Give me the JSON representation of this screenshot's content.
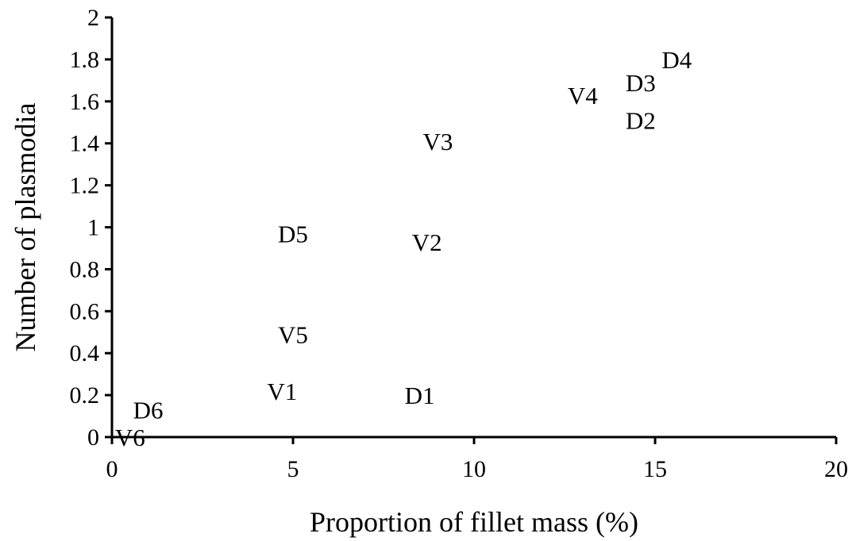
{
  "chart_data": {
    "type": "scatter",
    "title": "",
    "xlabel": "Proportion of fillet mass (%)",
    "ylabel": "Number of plasmodia",
    "xlim": [
      0,
      20
    ],
    "ylim": [
      0,
      2
    ],
    "xticks": [
      0,
      5,
      10,
      15,
      20
    ],
    "yticks": [
      0,
      0.2,
      0.4,
      0.6,
      0.8,
      1,
      1.2,
      1.4,
      1.6,
      1.8,
      2
    ],
    "xtick_labels": [
      "0",
      "5",
      "10",
      "15",
      "20"
    ],
    "ytick_labels": [
      "0",
      "0.2",
      "0.4",
      "0.6",
      "0.8",
      "1",
      "1.2",
      "1.4",
      "1.6",
      "1.8",
      "2"
    ],
    "grid": false,
    "legend": false,
    "marker": "text-label",
    "points": [
      {
        "label": "V6",
        "x": 0.5,
        "y": 0.0
      },
      {
        "label": "D6",
        "x": 1.0,
        "y": 0.13
      },
      {
        "label": "V1",
        "x": 4.7,
        "y": 0.22
      },
      {
        "label": "D1",
        "x": 8.5,
        "y": 0.2
      },
      {
        "label": "V5",
        "x": 5.0,
        "y": 0.49
      },
      {
        "label": "D5",
        "x": 5.0,
        "y": 0.97
      },
      {
        "label": "V2",
        "x": 8.7,
        "y": 0.93
      },
      {
        "label": "V3",
        "x": 9.0,
        "y": 1.41
      },
      {
        "label": "V4",
        "x": 13.0,
        "y": 1.63
      },
      {
        "label": "D2",
        "x": 14.6,
        "y": 1.51
      },
      {
        "label": "D3",
        "x": 14.6,
        "y": 1.69
      },
      {
        "label": "D4",
        "x": 15.6,
        "y": 1.8
      }
    ]
  }
}
